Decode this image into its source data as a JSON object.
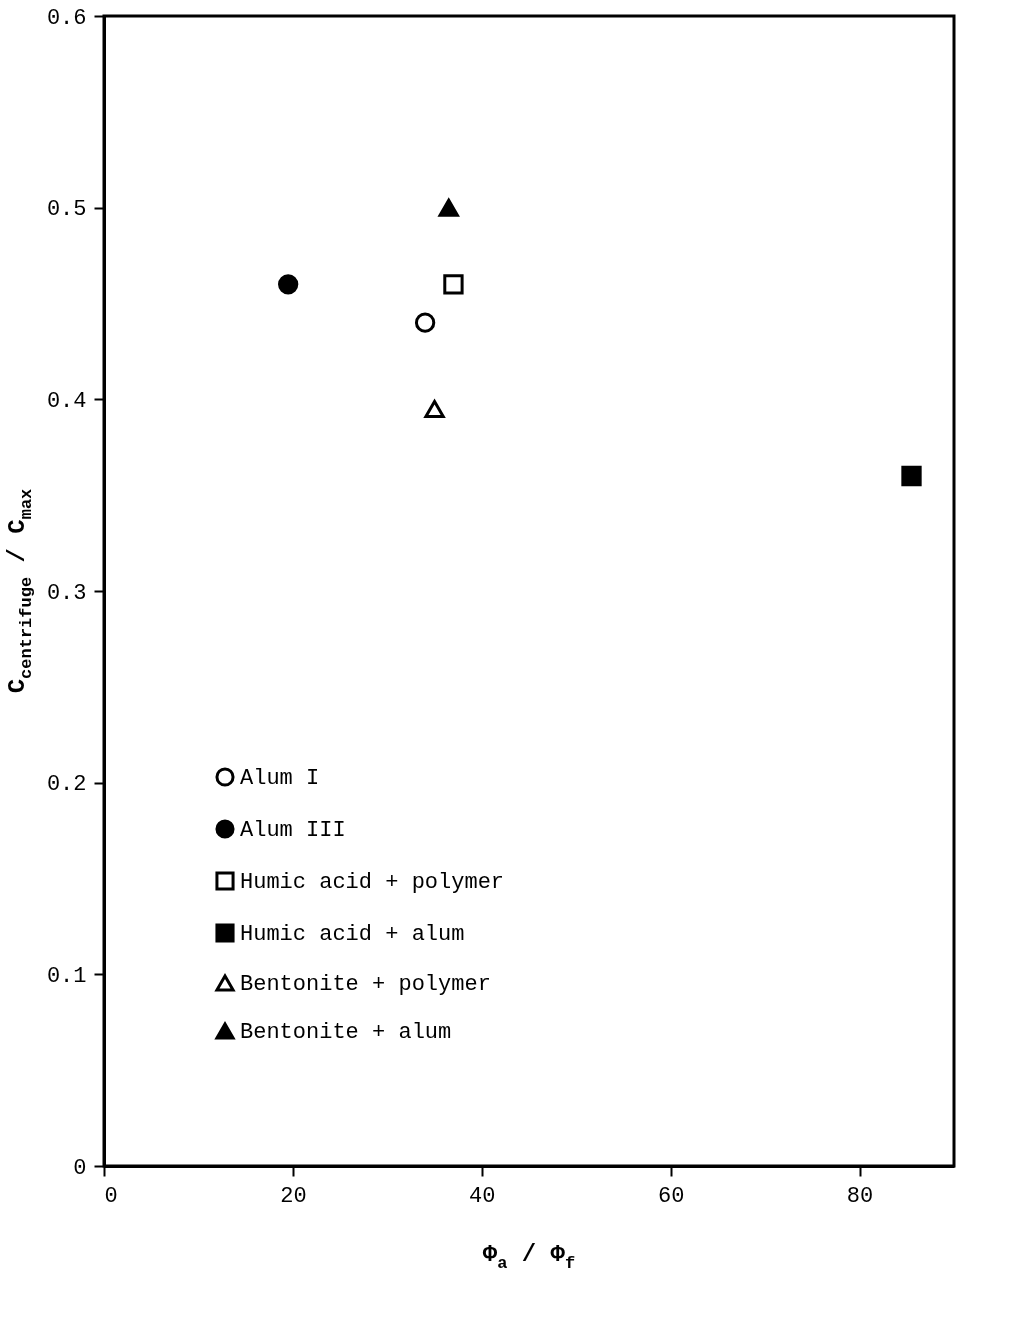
{
  "chart_data": {
    "type": "scatter",
    "xlabel": "Φ$_{a}$ / Φ$_{f}$",
    "ylabel": "C$_{centrifuge}$ / C$_{max}$",
    "xlim": [
      0,
      90
    ],
    "xticks": [
      0,
      20,
      40,
      60,
      80
    ],
    "ylim": [
      0,
      0.6
    ],
    "yticks": [
      0,
      0.1,
      0.2,
      0.3,
      0.4,
      0.5,
      0.6
    ],
    "grid": false,
    "legend": "bottom left",
    "series": [
      {
        "name": "Alum I",
        "color": "#ffffff",
        "marker": "circle",
        "x": [
          34.0
        ],
        "values": [
          0.44
        ]
      },
      {
        "name": "Alum III",
        "color": "#000000",
        "marker": "circle",
        "x": [
          19.5
        ],
        "values": [
          0.46
        ]
      },
      {
        "name": "Humic acid + polymer",
        "color": "#ffffff",
        "marker": "square",
        "x": [
          37.0
        ],
        "values": [
          0.46
        ]
      },
      {
        "name": "Humic acid + alum",
        "color": "#000000",
        "marker": "square",
        "x": [
          85.5
        ],
        "values": [
          0.36
        ]
      },
      {
        "name": "Bentonite + polymer",
        "color": "#ffffff",
        "marker": "triangle",
        "x": [
          35.0
        ],
        "values": [
          0.395
        ]
      },
      {
        "name": "Bentonite + alum",
        "color": "#000000",
        "marker": "triangle",
        "x": [
          36.5
        ],
        "values": [
          0.5
        ]
      }
    ]
  }
}
